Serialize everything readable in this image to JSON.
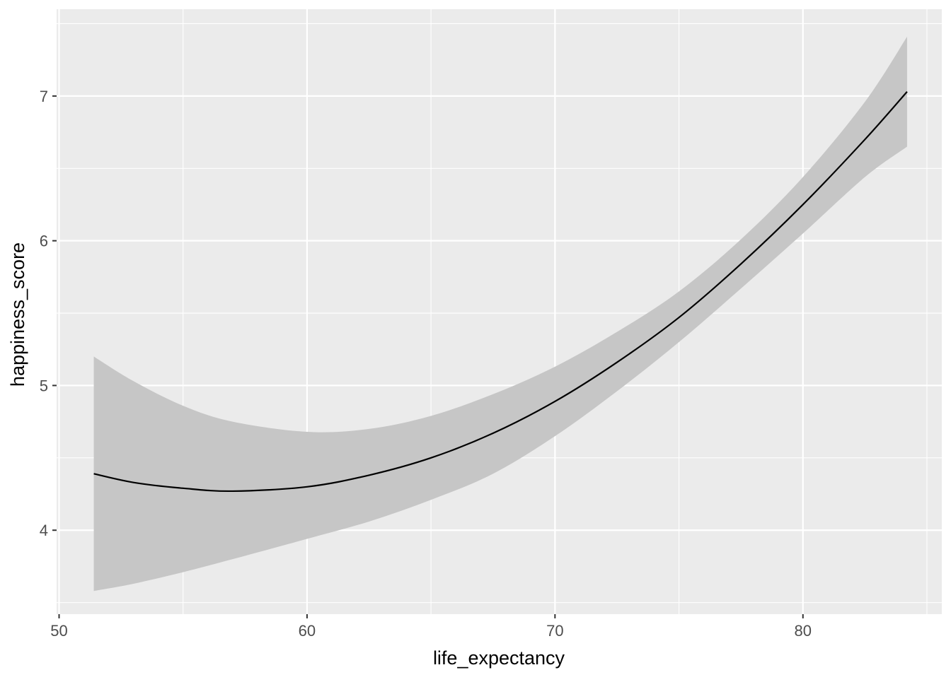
{
  "chart_data": {
    "type": "line",
    "title": "",
    "xlabel": "life_expectancy",
    "ylabel": "happiness_score",
    "xlim": [
      49.9,
      85.6
    ],
    "ylim": [
      3.42,
      7.6
    ],
    "x_ticks": [
      50,
      60,
      70,
      80
    ],
    "y_ticks": [
      4,
      5,
      6,
      7
    ],
    "x_tick_labels": [
      "50",
      "60",
      "70",
      "80"
    ],
    "y_tick_labels": [
      "4",
      "5",
      "6",
      "7"
    ],
    "grid": true,
    "legend": "none",
    "series": [
      {
        "x": [
          51.4,
          53,
          55,
          57,
          60,
          62.5,
          65,
          67.5,
          70,
          72.5,
          75,
          77.5,
          80,
          82.5,
          84.2
        ],
        "y": [
          4.39,
          4.33,
          4.29,
          4.27,
          4.3,
          4.38,
          4.5,
          4.67,
          4.89,
          5.16,
          5.47,
          5.84,
          6.25,
          6.7,
          7.03
        ],
        "ci_lower": [
          3.58,
          3.63,
          3.71,
          3.8,
          3.94,
          4.06,
          4.21,
          4.39,
          4.65,
          4.96,
          5.3,
          5.67,
          6.05,
          6.44,
          6.65
        ],
        "ci_upper": [
          5.2,
          5.03,
          4.86,
          4.75,
          4.68,
          4.7,
          4.79,
          4.94,
          5.13,
          5.37,
          5.65,
          6.01,
          6.44,
          6.96,
          7.41
        ]
      }
    ],
    "colors": {
      "panel": "#ebebeb",
      "grid_major": "#ffffff",
      "ribbon": "#c6c6c6",
      "line": "#000000",
      "tick_text": "#4d4d4d",
      "axis_title": "#000000"
    }
  }
}
